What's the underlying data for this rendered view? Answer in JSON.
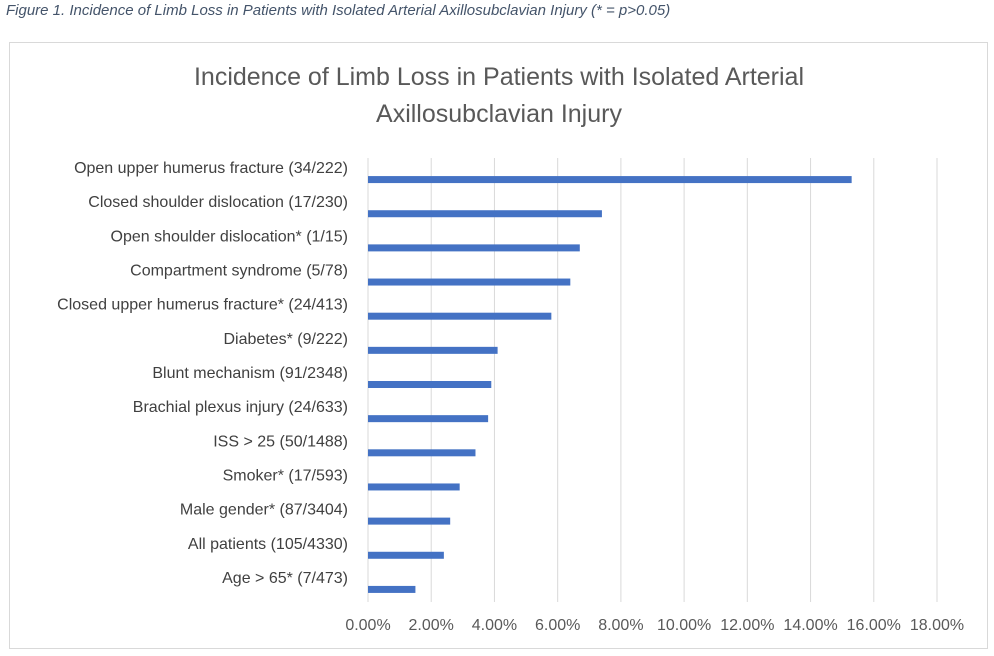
{
  "figure_caption": "Figure 1. Incidence of Limb Loss in Patients with Isolated Arterial Axillosubclavian Injury (* = p>0.05)",
  "colors": {
    "bar": "#4472c4",
    "grid": "#d9d9d9",
    "frame": "#d9d9d9",
    "caption": "#44546a"
  },
  "chart_data": {
    "type": "bar",
    "orientation": "horizontal",
    "title_lines": [
      "Incidence of Limb Loss in Patients with Isolated Arterial",
      "Axillosubclavian Injury"
    ],
    "categories": [
      "Open upper humerus fracture (34/222)",
      "Closed shoulder dislocation (17/230)",
      "Open shoulder dislocation* (1/15)",
      "Compartment syndrome (5/78)",
      "Closed upper humerus fracture* (24/413)",
      "Diabetes* (9/222)",
      "Blunt mechanism (91/2348)",
      "Brachial plexus injury (24/633)",
      "ISS > 25 (50/1488)",
      "Smoker* (17/593)",
      "Male gender* (87/3404)",
      "All patients (105/4330)",
      "Age > 65* (7/473)"
    ],
    "values": [
      0.153,
      0.074,
      0.067,
      0.064,
      0.058,
      0.041,
      0.039,
      0.038,
      0.034,
      0.029,
      0.026,
      0.024,
      0.015
    ],
    "xlim": [
      0,
      0.18
    ],
    "x_ticks": [
      0,
      0.02,
      0.04,
      0.06,
      0.08,
      0.1,
      0.12,
      0.14,
      0.16,
      0.18
    ],
    "x_tick_labels": [
      "0.00%",
      "2.00%",
      "4.00%",
      "6.00%",
      "8.00%",
      "10.00%",
      "12.00%",
      "14.00%",
      "16.00%",
      "18.00%"
    ],
    "grid": true,
    "legend": false
  }
}
